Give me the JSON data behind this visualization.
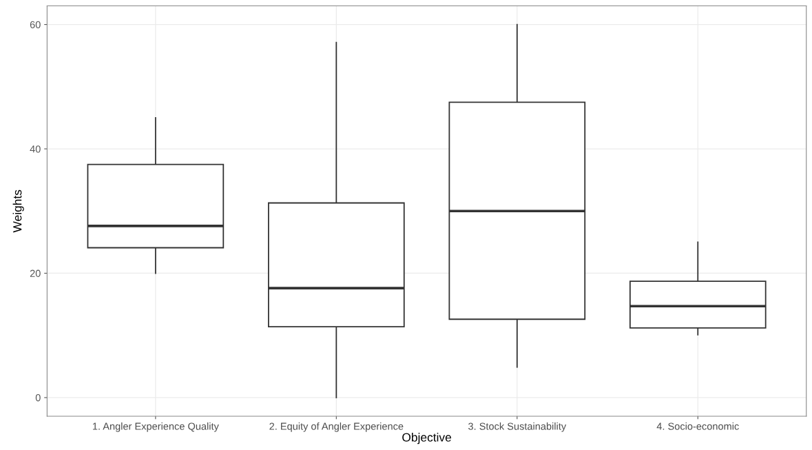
{
  "chart_data": {
    "type": "box",
    "xlabel": "Objective",
    "ylabel": "Weights",
    "categories": [
      "1. Angler Experience Quality",
      "2. Equity of Angler Experience",
      "3. Stock Sustainability",
      "4. Socio-economic"
    ],
    "boxes": [
      {
        "low": 20,
        "q1": 24.1,
        "median": 27.6,
        "q3": 37.5,
        "high": 45
      },
      {
        "low": 0,
        "q1": 11.4,
        "median": 17.6,
        "q3": 31.3,
        "high": 57.1
      },
      {
        "low": 4.9,
        "q1": 12.6,
        "median": 30,
        "q3": 47.5,
        "high": 60
      },
      {
        "low": 10.1,
        "q1": 11.2,
        "median": 14.7,
        "q3": 18.7,
        "high": 25
      }
    ],
    "color": "#333333",
    "ylim": [
      -3,
      63
    ],
    "yticks": [
      0,
      20,
      40,
      60
    ],
    "grid": true
  }
}
